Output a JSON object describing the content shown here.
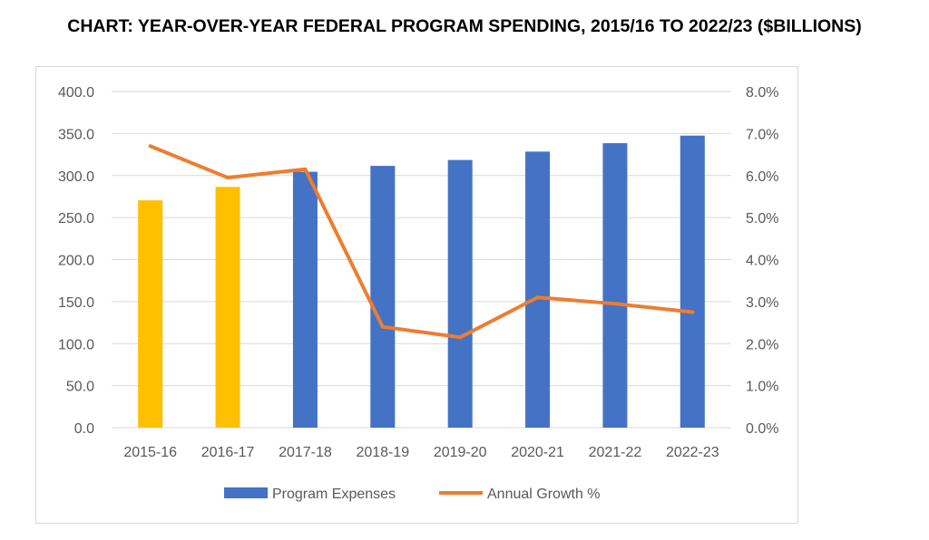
{
  "chart_data": {
    "type": "bar",
    "title": "CHART: YEAR-OVER-YEAR FEDERAL PROGRAM SPENDING, 2015/16 TO 2022/23 ($BILLIONS)",
    "categories": [
      "2015-16",
      "2016-17",
      "2017-18",
      "2018-19",
      "2019-20",
      "2020-21",
      "2021-22",
      "2022-23"
    ],
    "series": [
      {
        "name": "Program Expenses",
        "type": "bar",
        "axis": "left",
        "values": [
          270.5,
          286.5,
          304.5,
          311.5,
          318.5,
          328.5,
          338.5,
          347.5
        ],
        "colors": [
          "#FFC000",
          "#FFC000",
          "#4472C4",
          "#4472C4",
          "#4472C4",
          "#4472C4",
          "#4472C4",
          "#4472C4"
        ],
        "legend_color": "#4472C4"
      },
      {
        "name": "Annual Growth %",
        "type": "line",
        "axis": "right",
        "values": [
          6.7,
          5.95,
          6.15,
          2.4,
          2.15,
          3.1,
          2.95,
          2.75
        ],
        "color": "#ED7D31"
      }
    ],
    "y_left": {
      "lim": [
        0,
        400
      ],
      "ticks": [
        "0.0",
        "50.0",
        "100.0",
        "150.0",
        "200.0",
        "250.0",
        "300.0",
        "350.0",
        "400.0"
      ]
    },
    "y_right": {
      "lim": [
        0,
        8
      ],
      "ticks": [
        "0.0%",
        "1.0%",
        "2.0%",
        "3.0%",
        "4.0%",
        "5.0%",
        "6.0%",
        "7.0%",
        "8.0%"
      ]
    },
    "grid": true,
    "legend": "bottom",
    "gridline_color": "#d9d9d9",
    "axis_label_color": "#595959"
  }
}
